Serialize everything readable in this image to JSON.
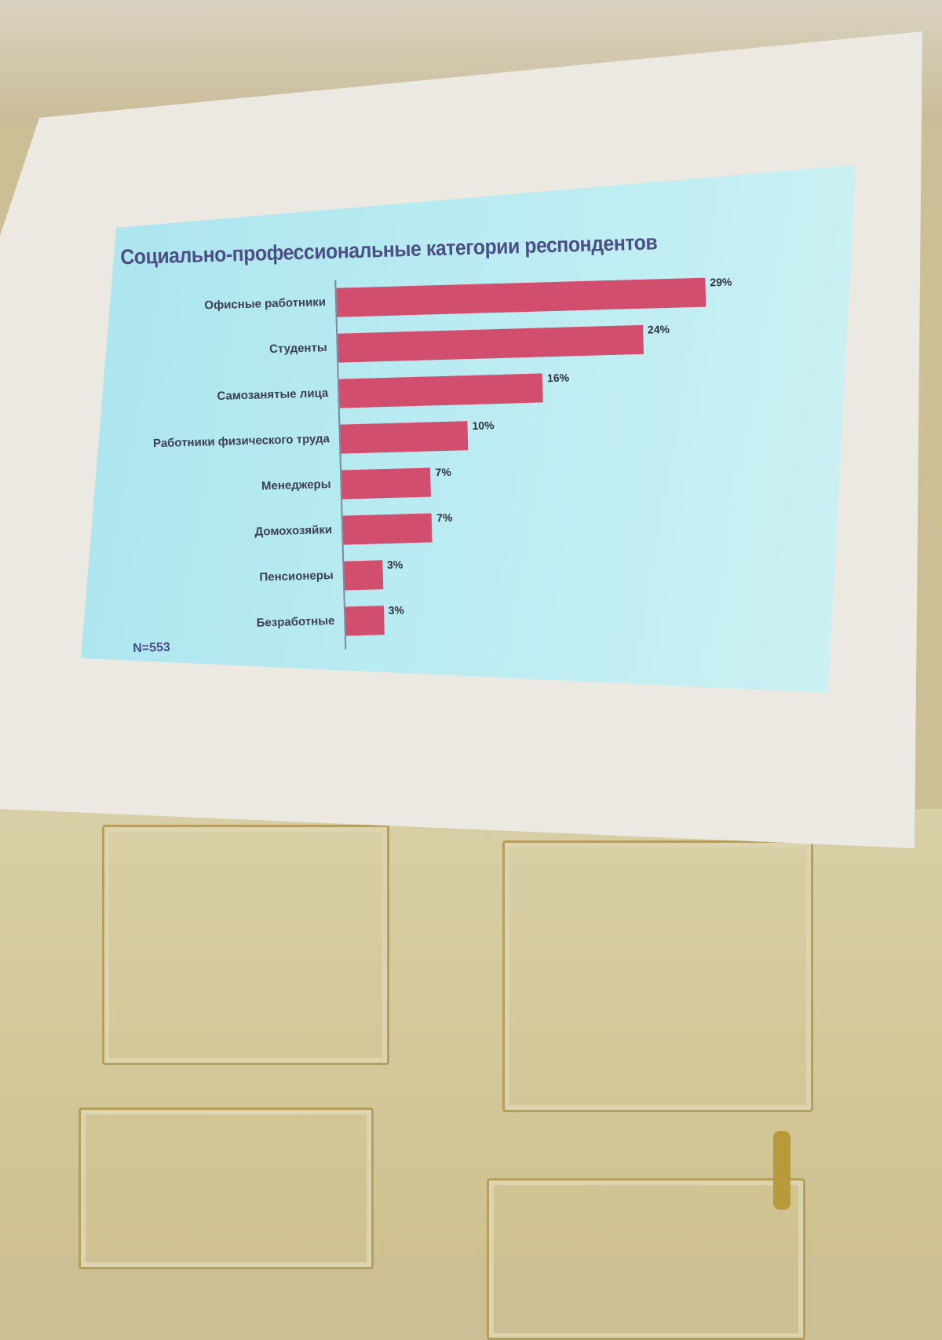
{
  "chart_data": {
    "type": "bar",
    "orientation": "horizontal",
    "title": "Социально-профессиональные категории респондентов",
    "categories": [
      "Офисные работники",
      "Студенты",
      "Самозанятые лица",
      "Работники физического труда",
      "Менеджеры",
      "Домохозяйки",
      "Пенсионеры",
      "Безработные"
    ],
    "values": [
      29,
      24,
      16,
      10,
      7,
      7,
      3,
      3
    ],
    "value_labels": [
      "29%",
      "24%",
      "16%",
      "10%",
      "7%",
      "7%",
      "3%",
      "3%"
    ],
    "unit": "%",
    "note": "N=553",
    "grid": false,
    "legend": "none",
    "colors": {
      "bar": "#d24e6e",
      "background": "#b7e9f0",
      "title": "#4b4f86"
    }
  }
}
